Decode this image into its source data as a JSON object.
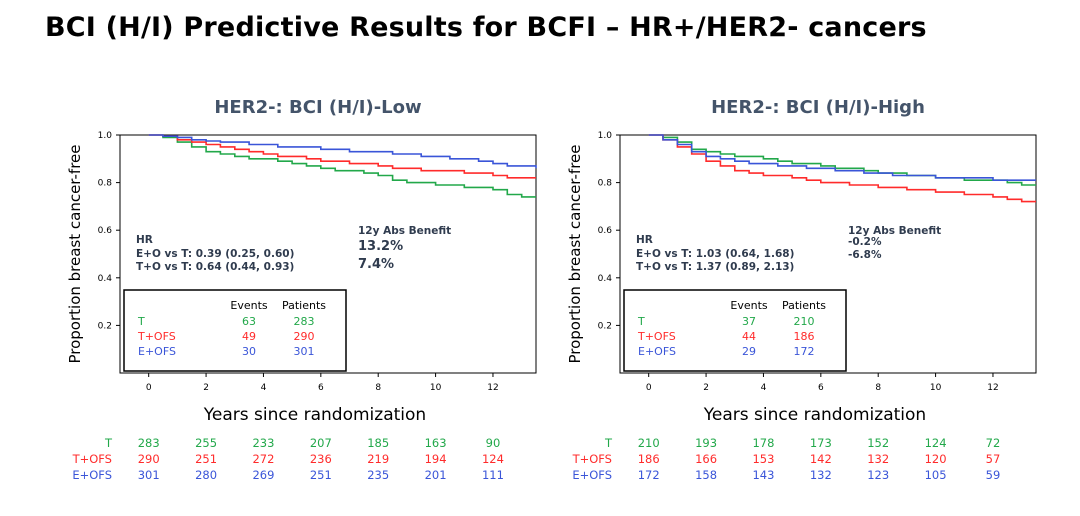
{
  "title": "BCI (H/I) Predictive Results for BCFI – HR+/HER2- cancers",
  "colors": {
    "T": "#22a84a",
    "T+OFS": "#ff2b2b",
    "E+OFS": "#3a55d8",
    "text": "#2f3b4e",
    "panel_title": "#44546a"
  },
  "chart_data": [
    {
      "type": "line",
      "title": "HER2-: BCI (H/I)-Low",
      "xlabel": "Years since randomization",
      "ylabel": "Proportion breast cancer-free",
      "xlim": [
        -1,
        13.5
      ],
      "ylim": [
        0,
        1.0
      ],
      "xticks": [
        0,
        2,
        4,
        6,
        8,
        10,
        12
      ],
      "yticks": [
        0.2,
        0.4,
        0.6,
        0.8,
        1.0
      ],
      "ytick_labels": [
        "0.2",
        "0.4",
        "0.6",
        "0.8",
        "1.0"
      ],
      "series": [
        {
          "name": "T",
          "x": [
            0,
            0.5,
            1,
            1.5,
            2,
            2.5,
            3,
            3.5,
            4,
            4.5,
            5,
            5.5,
            6,
            6.5,
            7,
            7.5,
            8,
            8.5,
            9,
            9.5,
            10,
            10.5,
            11,
            11.5,
            12,
            12.5,
            13,
            13.5
          ],
          "y": [
            1.0,
            0.99,
            0.97,
            0.95,
            0.93,
            0.92,
            0.91,
            0.9,
            0.9,
            0.89,
            0.88,
            0.87,
            0.86,
            0.85,
            0.85,
            0.84,
            0.83,
            0.81,
            0.8,
            0.8,
            0.79,
            0.79,
            0.78,
            0.78,
            0.77,
            0.75,
            0.74,
            0.74
          ]
        },
        {
          "name": "T+OFS",
          "x": [
            0,
            0.5,
            1,
            1.5,
            2,
            2.5,
            3,
            3.5,
            4,
            4.5,
            5,
            5.5,
            6,
            6.5,
            7,
            7.5,
            8,
            8.5,
            9,
            9.5,
            10,
            10.5,
            11,
            11.5,
            12,
            12.5,
            13,
            13.5
          ],
          "y": [
            1.0,
            0.995,
            0.98,
            0.97,
            0.96,
            0.95,
            0.94,
            0.93,
            0.92,
            0.91,
            0.91,
            0.9,
            0.89,
            0.89,
            0.88,
            0.88,
            0.87,
            0.86,
            0.86,
            0.85,
            0.85,
            0.85,
            0.84,
            0.84,
            0.83,
            0.82,
            0.82,
            0.82
          ]
        },
        {
          "name": "E+OFS",
          "x": [
            0,
            0.5,
            1,
            1.5,
            2,
            2.5,
            3,
            3.5,
            4,
            4.5,
            5,
            5.5,
            6,
            6.5,
            7,
            7.5,
            8,
            8.5,
            9,
            9.5,
            10,
            10.5,
            11,
            11.5,
            12,
            12.5,
            13,
            13.5
          ],
          "y": [
            1.0,
            0.995,
            0.99,
            0.98,
            0.975,
            0.97,
            0.97,
            0.96,
            0.96,
            0.95,
            0.95,
            0.95,
            0.94,
            0.94,
            0.93,
            0.93,
            0.93,
            0.92,
            0.92,
            0.91,
            0.91,
            0.9,
            0.9,
            0.89,
            0.88,
            0.87,
            0.87,
            0.86
          ]
        }
      ],
      "hr_title": "HR",
      "hr_lines": [
        "E+O vs T: 0.39 (0.25, 0.60)",
        "T+O vs T: 0.64 (0.44, 0.93)"
      ],
      "abs_title": "12y Abs Benefit",
      "abs_values": [
        "13.2%",
        "7.4%"
      ],
      "legend": {
        "headers": [
          "Events",
          "Patients"
        ],
        "rows": [
          {
            "label": "T",
            "events": "63",
            "patients": "283"
          },
          {
            "label": "T+OFS",
            "events": "49",
            "patients": "290"
          },
          {
            "label": "E+OFS",
            "events": "30",
            "patients": "301"
          }
        ]
      },
      "risk_table": [
        {
          "label": "T",
          "values": [
            "283",
            "255",
            "233",
            "207",
            "185",
            "163",
            "90"
          ]
        },
        {
          "label": "T+OFS",
          "values": [
            "290",
            "251",
            "272",
            "236",
            "219",
            "194",
            "124"
          ]
        },
        {
          "label": "E+OFS",
          "values": [
            "301",
            "280",
            "269",
            "251",
            "235",
            "201",
            "111"
          ]
        }
      ]
    },
    {
      "type": "line",
      "title": "HER2-: BCI (H/I)-High",
      "xlabel": "Years since randomization",
      "ylabel": "Proportion breast cancer-free",
      "xlim": [
        -1,
        13.5
      ],
      "ylim": [
        0,
        1.0
      ],
      "xticks": [
        0,
        2,
        4,
        6,
        8,
        10,
        12
      ],
      "yticks": [
        0.2,
        0.4,
        0.6,
        0.8,
        1.0
      ],
      "ytick_labels": [
        "0.2",
        "0.4",
        "0.6",
        "0.8",
        "1.0"
      ],
      "series": [
        {
          "name": "T",
          "x": [
            0,
            0.5,
            1,
            1.5,
            2,
            2.5,
            3,
            3.5,
            4,
            4.5,
            5,
            5.5,
            6,
            6.5,
            7,
            7.5,
            8,
            8.5,
            9,
            9.5,
            10,
            10.5,
            11,
            11.5,
            12,
            12.5,
            13,
            13.5
          ],
          "y": [
            1.0,
            0.99,
            0.97,
            0.94,
            0.93,
            0.92,
            0.91,
            0.91,
            0.9,
            0.89,
            0.88,
            0.88,
            0.87,
            0.86,
            0.86,
            0.85,
            0.84,
            0.84,
            0.83,
            0.83,
            0.82,
            0.82,
            0.81,
            0.81,
            0.81,
            0.8,
            0.79,
            0.79
          ]
        },
        {
          "name": "T+OFS",
          "x": [
            0,
            0.5,
            1,
            1.5,
            2,
            2.5,
            3,
            3.5,
            4,
            4.5,
            5,
            5.5,
            6,
            6.5,
            7,
            7.5,
            8,
            8.5,
            9,
            9.5,
            10,
            10.5,
            11,
            11.5,
            12,
            12.5,
            13,
            13.5
          ],
          "y": [
            1.0,
            0.98,
            0.95,
            0.92,
            0.89,
            0.87,
            0.85,
            0.84,
            0.83,
            0.83,
            0.82,
            0.81,
            0.8,
            0.8,
            0.79,
            0.79,
            0.78,
            0.78,
            0.77,
            0.77,
            0.76,
            0.76,
            0.75,
            0.75,
            0.74,
            0.73,
            0.72,
            0.72
          ]
        },
        {
          "name": "E+OFS",
          "x": [
            0,
            0.5,
            1,
            1.5,
            2,
            2.5,
            3,
            3.5,
            4,
            4.5,
            5,
            5.5,
            6,
            6.5,
            7,
            7.5,
            8,
            8.5,
            9,
            9.5,
            10,
            10.5,
            11,
            11.5,
            12,
            12.5,
            13,
            13.5
          ],
          "y": [
            1.0,
            0.98,
            0.96,
            0.93,
            0.91,
            0.9,
            0.89,
            0.88,
            0.88,
            0.87,
            0.87,
            0.86,
            0.86,
            0.85,
            0.85,
            0.84,
            0.84,
            0.83,
            0.83,
            0.83,
            0.82,
            0.82,
            0.82,
            0.82,
            0.81,
            0.81,
            0.81,
            0.81
          ]
        }
      ],
      "hr_title": "HR",
      "hr_lines": [
        "E+O vs T: 1.03 (0.64, 1.68)",
        "T+O vs T: 1.37 (0.89, 2.13)"
      ],
      "abs_title": "12y Abs Benefit",
      "abs_values": [
        "-0.2%",
        "-6.8%"
      ],
      "legend": {
        "headers": [
          "Events",
          "Patients"
        ],
        "rows": [
          {
            "label": "T",
            "events": "37",
            "patients": "210"
          },
          {
            "label": "T+OFS",
            "events": "44",
            "patients": "186"
          },
          {
            "label": "E+OFS",
            "events": "29",
            "patients": "172"
          }
        ]
      },
      "risk_table": [
        {
          "label": "T",
          "values": [
            "210",
            "193",
            "178",
            "173",
            "152",
            "124",
            "72"
          ]
        },
        {
          "label": "T+OFS",
          "values": [
            "186",
            "166",
            "153",
            "142",
            "132",
            "120",
            "57"
          ]
        },
        {
          "label": "E+OFS",
          "values": [
            "172",
            "158",
            "143",
            "132",
            "123",
            "105",
            "59"
          ]
        }
      ]
    }
  ]
}
